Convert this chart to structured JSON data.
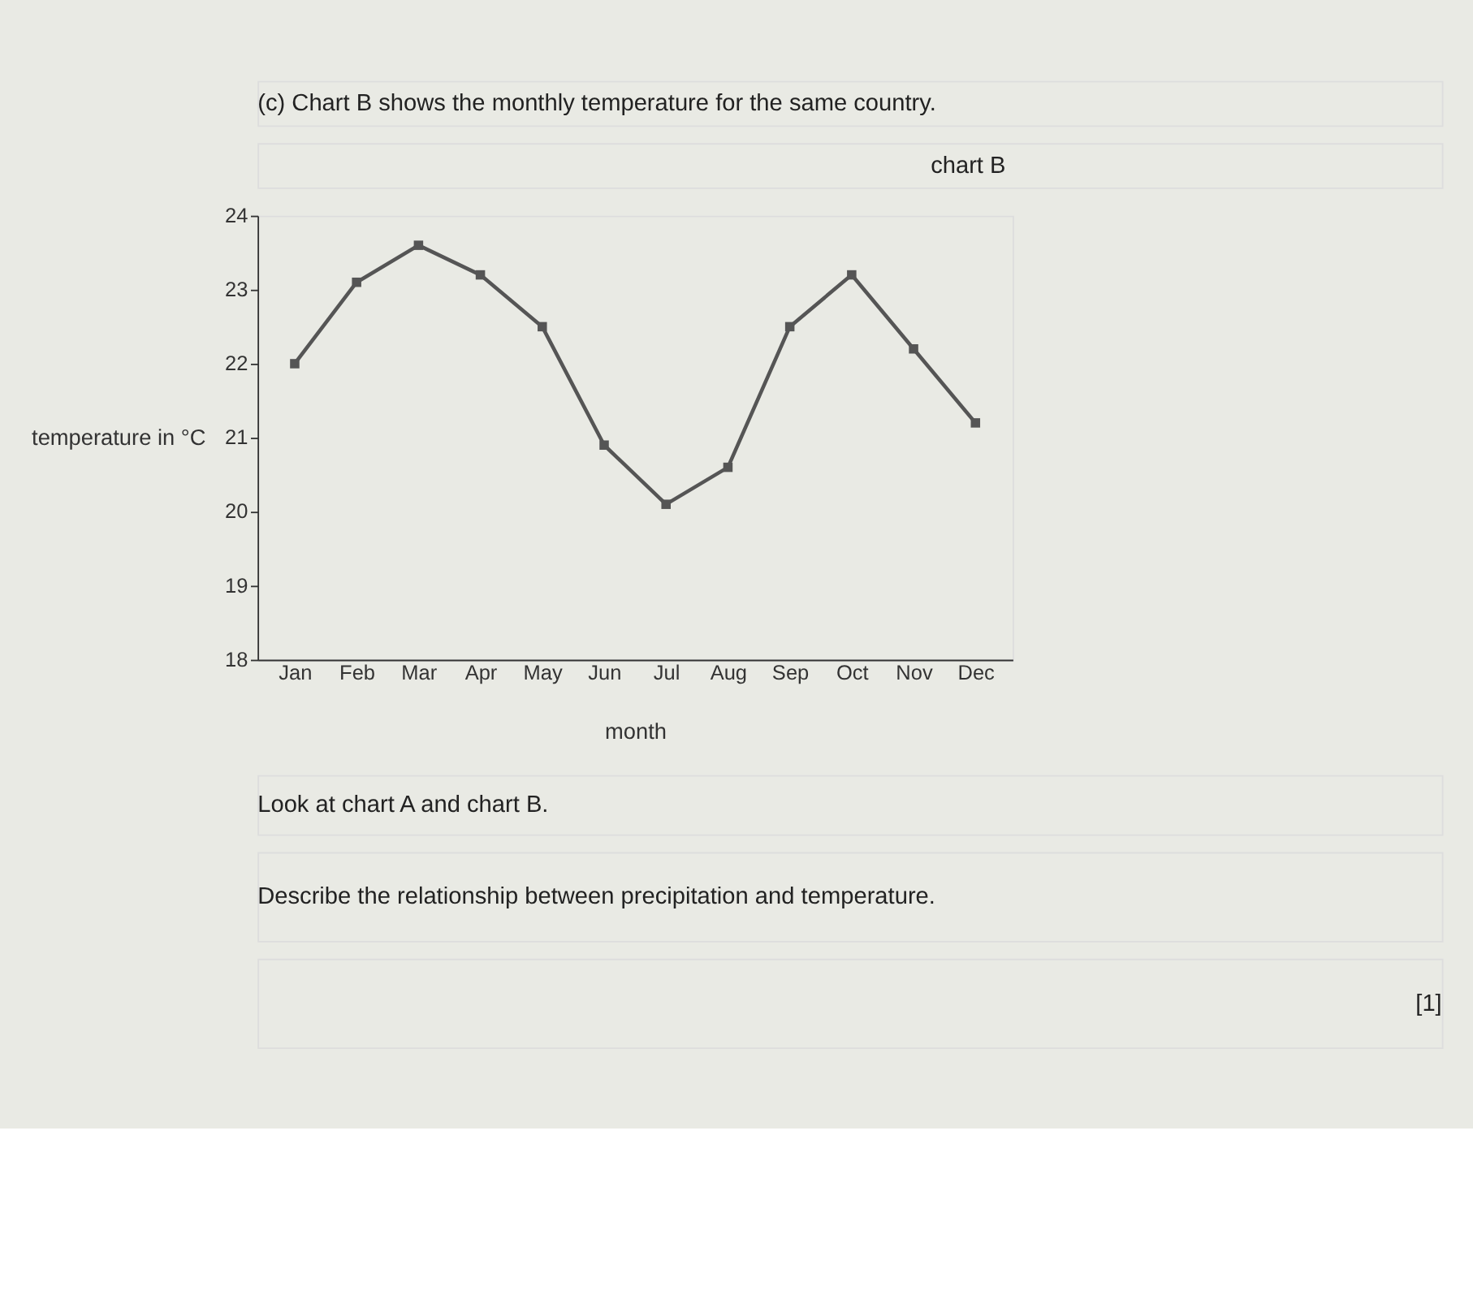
{
  "chart_data": {
    "type": "line",
    "title": "chart B",
    "subtitle": "(c) Chart B shows the monthly temperature for the same country.",
    "xlabel": "month",
    "ylabel": "temperature in °C",
    "categories": [
      "Jan",
      "Feb",
      "Mar",
      "Apr",
      "May",
      "Jun",
      "Jul",
      "Aug",
      "Sep",
      "Oct",
      "Nov",
      "Dec"
    ],
    "series": [
      {
        "color": "#555555",
        "values": [
          22.0,
          23.1,
          23.6,
          23.2,
          22.5,
          20.9,
          20.1,
          20.6,
          22.5,
          23.2,
          22.2,
          21.2
        ]
      }
    ],
    "ylim": [
      18,
      24
    ],
    "yticks": [
      18,
      19,
      20,
      21,
      22,
      23,
      24
    ],
    "grid": false,
    "legend": false,
    "marker": "square",
    "line_style": "solid",
    "annotations": [
      "Look at chart A and chart B.",
      "Describe the relationship between precipitation and temperature.",
      "[1]"
    ]
  }
}
